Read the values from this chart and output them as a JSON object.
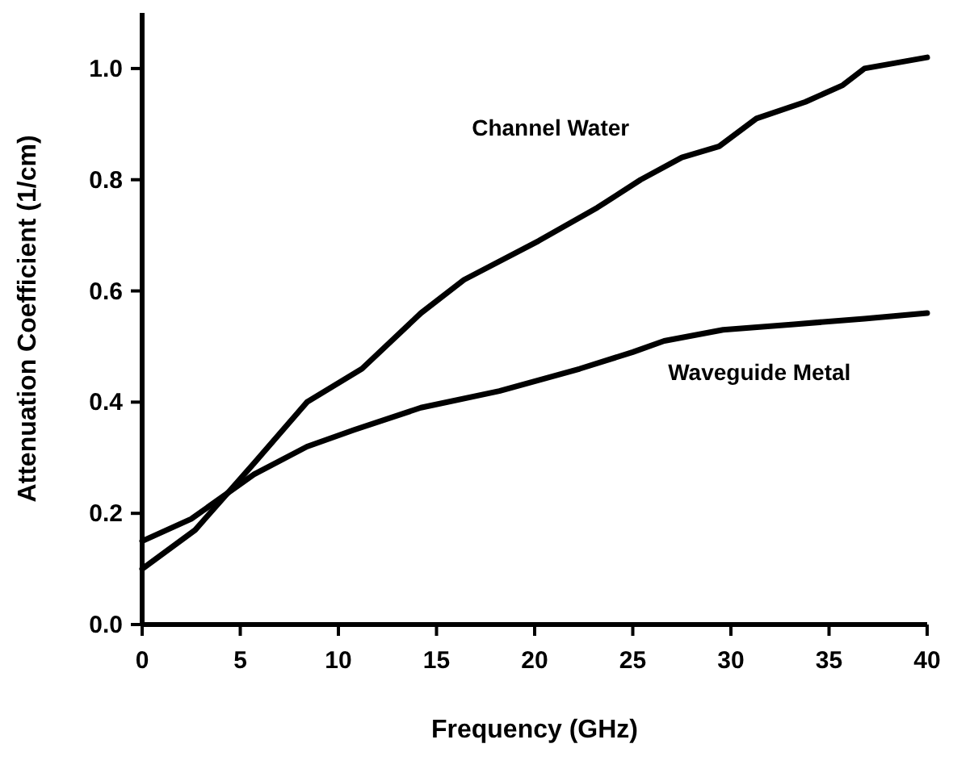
{
  "chart_data": {
    "type": "line",
    "xlabel": "Frequency (GHz)",
    "ylabel": "Attenuation Coefficient (1/cm)",
    "xlim": [
      0,
      40
    ],
    "xticks": [
      0,
      5,
      10,
      15,
      20,
      25,
      30,
      35,
      40
    ],
    "ylim": [
      0,
      1.1
    ],
    "yticks": [
      {
        "value": 0,
        "label": "0.0"
      },
      0.2,
      0.4,
      0.6,
      0.8,
      {
        "value": 1,
        "label": "1.0"
      }
    ],
    "grid": false,
    "marker": "none",
    "line_style": "solid",
    "series": [
      {
        "name": "Channel Water",
        "color": "#000000",
        "x": [
          0,
          2.7,
          5.7,
          8.4,
          11.2,
          14.2,
          16.4,
          20.2,
          23.2,
          25.4,
          27.5,
          29.4,
          31.3,
          33.8,
          35.7,
          36.8,
          40
        ],
        "values": [
          0.1,
          0.17,
          0.29,
          0.4,
          0.46,
          0.56,
          0.62,
          0.69,
          0.75,
          0.8,
          0.84,
          0.86,
          0.91,
          0.94,
          0.97,
          1.0,
          1.02
        ]
      },
      {
        "name": "Waveguide Metal",
        "color": "#000000",
        "x": [
          0,
          2.5,
          5.7,
          8.4,
          10.8,
          14.2,
          18.2,
          22.3,
          25,
          26.6,
          29.6,
          33.2,
          36.8,
          40
        ],
        "values": [
          0.15,
          0.19,
          0.27,
          0.32,
          0.35,
          0.39,
          0.42,
          0.46,
          0.49,
          0.51,
          0.53,
          0.54,
          0.55,
          0.56
        ]
      }
    ]
  }
}
